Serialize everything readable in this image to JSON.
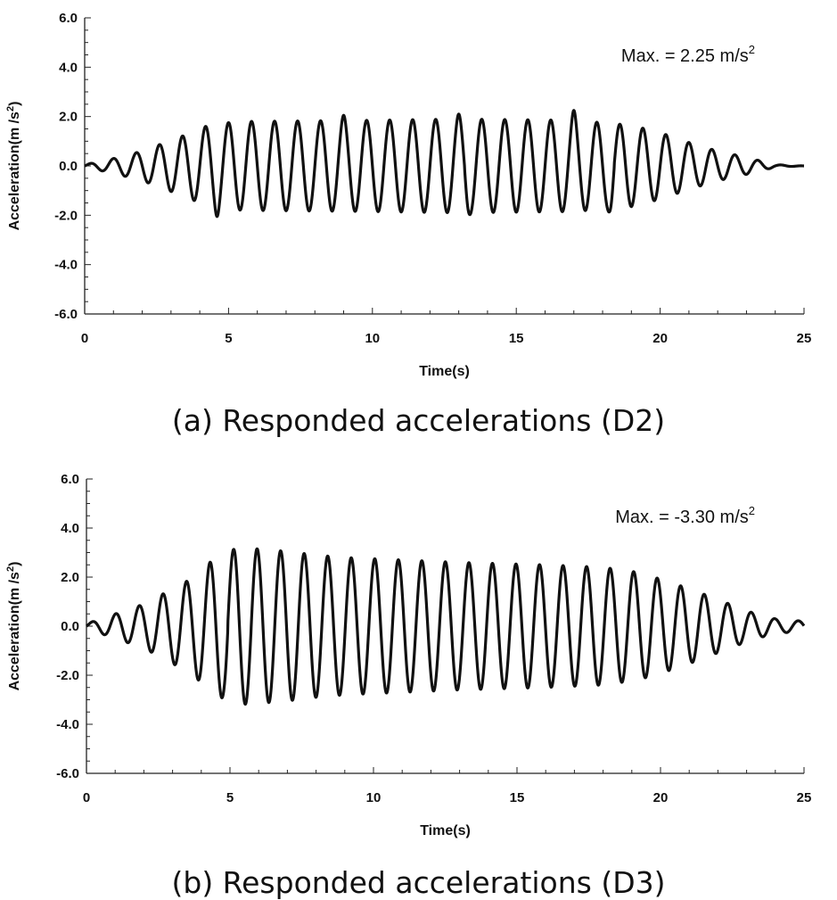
{
  "chart_data": [
    {
      "type": "line",
      "caption": "(a) Responded accelerations (D2)",
      "xlabel": "Time(s)",
      "ylabel": "Acceleration(m /s2)",
      "ylabel_main": "Acceleration(m /s",
      "ylabel_sup": "2",
      "ylabel_end": ")",
      "xlim": [
        0,
        25
      ],
      "ylim": [
        -6.0,
        6.0
      ],
      "xticks": [
        0,
        5,
        10,
        15,
        20,
        25
      ],
      "xtick_labels": [
        "0",
        "5",
        "10",
        "15",
        "20",
        "25"
      ],
      "yticks": [
        6.0,
        4.0,
        2.0,
        0.0,
        -2.0,
        -4.0,
        -6.0
      ],
      "ytick_labels": [
        "6.0",
        "4.0",
        "2.0",
        "0.0",
        "-2.0",
        "-4.0",
        "-6.0"
      ],
      "annotation": "Max. = 2.25 m/s2",
      "annotation_main": "Max. = 2.25 m/s",
      "annotation_sup": "2",
      "grid": false,
      "series": [
        {
          "color": "#111111",
          "period": 0.8,
          "envelope": [
            [
              0,
              0.05
            ],
            [
              1,
              0.3
            ],
            [
              2,
              0.6
            ],
            [
              2.8,
              0.95
            ],
            [
              3.6,
              1.3
            ],
            [
              4.4,
              1.7
            ],
            [
              5.5,
              1.8
            ],
            [
              10,
              1.85
            ],
            [
              13,
              1.9
            ],
            [
              17,
              1.85
            ],
            [
              19,
              1.65
            ],
            [
              20,
              1.35
            ],
            [
              21,
              0.95
            ],
            [
              22,
              0.6
            ],
            [
              22.8,
              0.4
            ],
            [
              23.5,
              0.2
            ],
            [
              24,
              0.05
            ],
            [
              25,
              0.0
            ]
          ],
          "peaks": [
            [
              17.0,
              2.25
            ],
            [
              13.0,
              2.1
            ],
            [
              9.0,
              2.05
            ],
            [
              4.6,
              -2.05
            ],
            [
              13.3,
              -2.1
            ],
            [
              18.3,
              -2.05
            ]
          ]
        }
      ]
    },
    {
      "type": "line",
      "caption": "(b) Responded accelerations (D3)",
      "xlabel": "Time(s)",
      "ylabel": "Acceleration(m /s2)",
      "ylabel_main": "Acceleration(m /s",
      "ylabel_sup": "2",
      "ylabel_end": ")",
      "xlim": [
        0,
        25
      ],
      "ylim": [
        -6.0,
        6.0
      ],
      "xticks": [
        0,
        5,
        10,
        15,
        20,
        25
      ],
      "xtick_labels": [
        "0",
        "5",
        "10",
        "15",
        "20",
        "25"
      ],
      "yticks": [
        6.0,
        4.0,
        2.0,
        0.0,
        -2.0,
        -4.0,
        -6.0
      ],
      "ytick_labels": [
        "6.0",
        "4.0",
        "2.0",
        "0.0",
        "-2.0",
        "-4.0",
        "-6.0"
      ],
      "annotation": "Max. = -3.30 m/s2",
      "annotation_main": "Max. = -3.30 m/s",
      "annotation_sup": "2",
      "grid": false,
      "series": [
        {
          "color": "#111111",
          "period": 0.82,
          "envelope": [
            [
              0,
              0.1
            ],
            [
              1,
              0.5
            ],
            [
              2,
              0.9
            ],
            [
              2.8,
              1.4
            ],
            [
              3.6,
              1.9
            ],
            [
              4.5,
              2.8
            ],
            [
              5.3,
              3.2
            ],
            [
              6,
              3.15
            ],
            [
              7,
              3.05
            ],
            [
              8,
              2.9
            ],
            [
              9,
              2.8
            ],
            [
              11,
              2.7
            ],
            [
              13,
              2.6
            ],
            [
              16,
              2.5
            ],
            [
              18,
              2.4
            ],
            [
              19.2,
              2.2
            ],
            [
              20.2,
              1.85
            ],
            [
              21.3,
              1.4
            ],
            [
              22.3,
              0.95
            ],
            [
              23.2,
              0.55
            ],
            [
              24,
              0.3
            ],
            [
              24.5,
              0.25
            ],
            [
              25,
              0.2
            ]
          ],
          "peaks": [
            [
              4.9,
              -3.3
            ],
            [
              5.25,
              3.2
            ],
            [
              5.8,
              -3.25
            ]
          ]
        }
      ]
    }
  ]
}
